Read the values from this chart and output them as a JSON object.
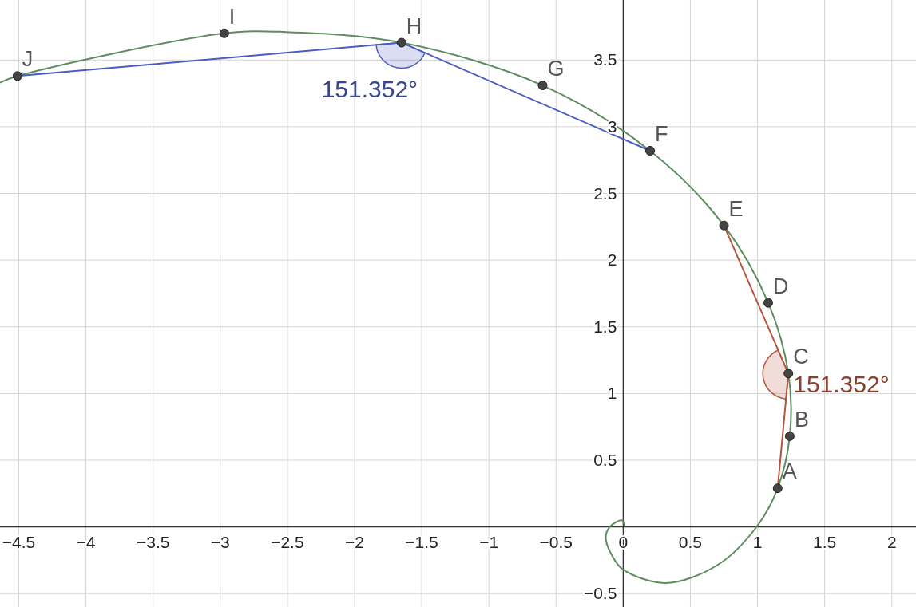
{
  "chart_data": {
    "type": "line",
    "xlim": [
      -4.64,
      2.18
    ],
    "ylim": [
      -0.6,
      3.95
    ],
    "xticks": [
      -4.5,
      -4,
      -3.5,
      -3,
      -2.5,
      -2,
      -1.5,
      -1,
      -0.5,
      0,
      0.5,
      1,
      1.5,
      2
    ],
    "yticks": [
      -0.5,
      0.5,
      1,
      1.5,
      2,
      2.5,
      3,
      3.5
    ],
    "grid": true,
    "line_style": "solid",
    "series": [
      {
        "color": "#5e8c5e",
        "x": [
          0.01,
          -0.01,
          -0.1,
          -0.13,
          -0.08,
          0,
          0.32,
          0.71,
          1.0,
          1.15,
          1.24,
          1.23,
          1.08,
          0.75,
          0.2,
          -0.6,
          -1.65,
          -2.51,
          -2.97,
          -4.51,
          -4.64
        ],
        "values": [
          0.01,
          0.05,
          0.0,
          -0.08,
          -0.22,
          -0.32,
          -0.42,
          -0.28,
          0.01,
          0.29,
          0.68,
          1.15,
          1.68,
          2.26,
          2.82,
          3.31,
          3.63,
          3.71,
          3.7,
          3.38,
          3.33
        ]
      },
      {
        "color": "#b5553f",
        "x": [
          1.15,
          1.23,
          0.75
        ],
        "values": [
          0.29,
          1.15,
          2.26
        ]
      },
      {
        "color": "#4a5cc0",
        "x": [
          0.2,
          -1.65,
          -4.51
        ],
        "values": [
          2.82,
          3.63,
          3.38
        ]
      },
      {
        "type": "scatter",
        "marker": "circle",
        "color": "#444444",
        "x": [
          1.15,
          1.24,
          1.23,
          1.08,
          0.75,
          0.2,
          -0.6,
          -1.65,
          -2.97,
          -4.51
        ],
        "values": [
          0.29,
          0.68,
          1.15,
          1.68,
          2.26,
          2.82,
          3.31,
          3.63,
          3.7,
          3.38
        ]
      }
    ],
    "annotations": [
      {
        "text": "A",
        "x": 1.15,
        "y": 0.29
      },
      {
        "text": "B",
        "x": 1.24,
        "y": 0.68
      },
      {
        "text": "C",
        "x": 1.23,
        "y": 1.15
      },
      {
        "text": "D",
        "x": 1.08,
        "y": 1.68
      },
      {
        "text": "E",
        "x": 0.75,
        "y": 2.26
      },
      {
        "text": "F",
        "x": 0.2,
        "y": 2.82
      },
      {
        "text": "G",
        "x": -0.6,
        "y": 3.31
      },
      {
        "text": "H",
        "x": -1.65,
        "y": 3.63
      },
      {
        "text": "I",
        "x": -2.97,
        "y": 3.7
      },
      {
        "text": "J",
        "x": -4.51,
        "y": 3.38
      },
      {
        "text": "151.352°",
        "x": 1.23,
        "y": 1.15
      },
      {
        "text": "151.352°",
        "x": -1.65,
        "y": 3.63
      }
    ]
  }
}
